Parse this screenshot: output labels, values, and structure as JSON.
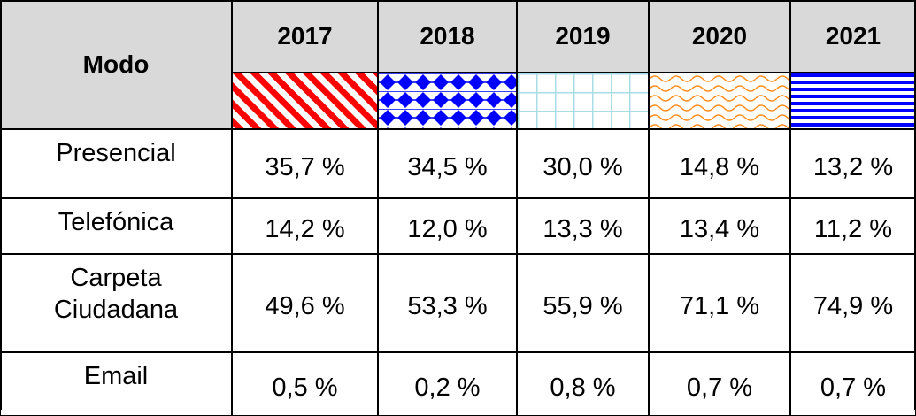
{
  "header": {
    "mode": "Modo",
    "years": [
      "2017",
      "2018",
      "2019",
      "2020",
      "2021"
    ]
  },
  "table": {
    "rows": [
      {
        "label": "Presencial",
        "values": [
          "35,7 %",
          "34,5 %",
          "30,0 %",
          "14,8 %",
          "13,2 %"
        ]
      },
      {
        "label": "Telefónica",
        "values": [
          "14,2 %",
          "12,0 %",
          "13,3 %",
          "13,4 %",
          "11,2 %"
        ]
      },
      {
        "label": "Carpeta Ciudadana",
        "values": [
          "49,6 %",
          "53,3 %",
          "55,9 %",
          "71,1 %",
          "74,9 %"
        ]
      },
      {
        "label": "Email",
        "values": [
          "0,5 %",
          "0,2 %",
          "0,8 %",
          "0,7 %",
          "0,7 %"
        ]
      }
    ]
  }
}
